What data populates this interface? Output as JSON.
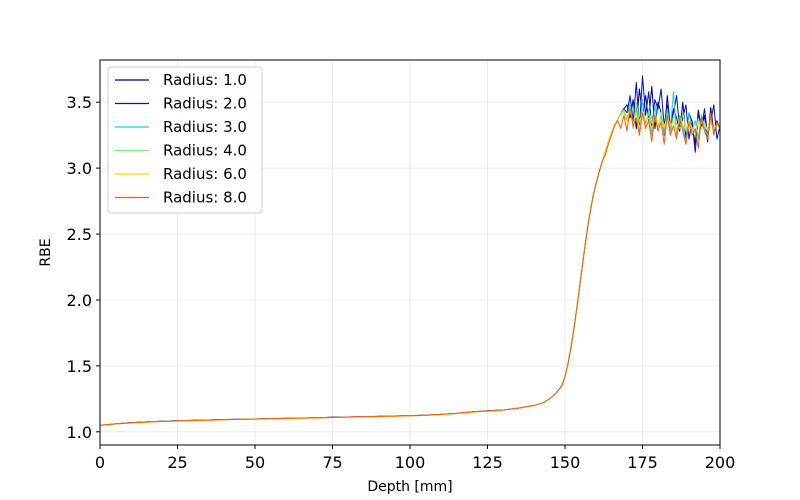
{
  "chart_data": {
    "type": "line",
    "xlabel": "Depth [mm]",
    "ylabel": "RBE",
    "xlim": [
      0,
      200
    ],
    "ylim": [
      0.9,
      3.82
    ],
    "xticks": [
      0,
      25,
      50,
      75,
      100,
      125,
      150,
      175,
      200
    ],
    "xtick_labels": [
      "0",
      "25",
      "50",
      "75",
      "100",
      "125",
      "150",
      "175",
      "200"
    ],
    "yticks": [
      1.0,
      1.5,
      2.0,
      2.5,
      3.0,
      3.5
    ],
    "ytick_labels": [
      "1.0",
      "1.5",
      "2.0",
      "2.5",
      "3.0",
      "3.5"
    ],
    "grid": true,
    "legend_position": "top-left",
    "x": [
      0,
      5,
      10,
      15,
      20,
      25,
      30,
      35,
      40,
      45,
      50,
      55,
      60,
      65,
      70,
      75,
      80,
      85,
      90,
      95,
      100,
      105,
      110,
      115,
      120,
      125,
      130,
      135,
      140,
      143,
      145,
      147,
      149,
      150,
      151,
      152,
      153,
      154,
      155,
      156,
      157,
      158,
      159,
      160,
      161,
      162,
      163,
      164,
      165,
      166,
      167,
      168,
      169,
      170,
      171,
      172,
      173,
      174,
      175,
      176,
      177,
      178,
      179,
      180,
      181,
      182,
      183,
      184,
      185,
      186,
      187,
      188,
      189,
      190,
      191,
      192,
      193,
      194,
      195,
      196,
      197,
      198,
      199,
      200
    ],
    "series": [
      {
        "name": "Radius: 1.0",
        "color": "#00007f",
        "values": [
          1.05,
          1.06,
          1.07,
          1.075,
          1.08,
          1.085,
          1.087,
          1.09,
          1.093,
          1.095,
          1.097,
          1.1,
          1.102,
          1.105,
          1.107,
          1.11,
          1.112,
          1.115,
          1.117,
          1.12,
          1.123,
          1.127,
          1.132,
          1.14,
          1.15,
          1.16,
          1.165,
          1.18,
          1.2,
          1.22,
          1.25,
          1.29,
          1.35,
          1.42,
          1.52,
          1.65,
          1.8,
          1.97,
          2.15,
          2.33,
          2.5,
          2.65,
          2.78,
          2.88,
          2.97,
          3.05,
          3.13,
          3.2,
          3.27,
          3.32,
          3.37,
          3.41,
          3.45,
          3.48,
          3.38,
          3.52,
          3.3,
          3.6,
          3.4,
          3.55,
          3.35,
          3.62,
          3.3,
          3.5,
          3.42,
          3.25,
          3.55,
          3.3,
          3.45,
          3.38,
          3.28,
          3.5,
          3.22,
          3.42,
          3.35,
          3.18,
          3.44,
          3.3,
          3.4,
          3.2,
          3.46,
          3.28,
          3.36,
          3.3
        ]
      },
      {
        "name": "Radius: 2.0",
        "color": "#0010c8",
        "values": [
          1.05,
          1.06,
          1.068,
          1.075,
          1.08,
          1.084,
          1.087,
          1.09,
          1.092,
          1.095,
          1.097,
          1.1,
          1.102,
          1.104,
          1.107,
          1.11,
          1.112,
          1.114,
          1.117,
          1.12,
          1.122,
          1.126,
          1.132,
          1.14,
          1.152,
          1.158,
          1.165,
          1.18,
          1.2,
          1.22,
          1.25,
          1.29,
          1.35,
          1.42,
          1.52,
          1.65,
          1.8,
          1.97,
          2.15,
          2.33,
          2.5,
          2.65,
          2.78,
          2.88,
          2.97,
          3.05,
          3.13,
          3.2,
          3.27,
          3.32,
          3.37,
          3.41,
          3.45,
          3.42,
          3.55,
          3.35,
          3.65,
          3.3,
          3.7,
          3.4,
          3.58,
          3.3,
          3.52,
          3.45,
          3.6,
          3.32,
          3.48,
          3.25,
          3.42,
          3.55,
          3.3,
          3.38,
          3.48,
          3.22,
          3.36,
          3.12,
          3.4,
          3.3,
          3.45,
          3.25,
          3.35,
          3.48,
          3.22,
          3.32
        ]
      },
      {
        "name": "Radius: 3.0",
        "color": "#1cd0e0",
        "values": [
          1.05,
          1.058,
          1.068,
          1.074,
          1.079,
          1.083,
          1.086,
          1.089,
          1.092,
          1.094,
          1.097,
          1.099,
          1.101,
          1.104,
          1.106,
          1.109,
          1.111,
          1.114,
          1.116,
          1.119,
          1.122,
          1.126,
          1.131,
          1.139,
          1.15,
          1.157,
          1.165,
          1.18,
          1.2,
          1.22,
          1.25,
          1.29,
          1.35,
          1.42,
          1.52,
          1.65,
          1.8,
          1.97,
          2.15,
          2.33,
          2.5,
          2.65,
          2.78,
          2.88,
          2.97,
          3.05,
          3.13,
          3.2,
          3.27,
          3.32,
          3.37,
          3.41,
          3.44,
          3.36,
          3.5,
          3.3,
          3.46,
          3.28,
          3.52,
          3.34,
          3.42,
          3.25,
          3.48,
          3.3,
          3.4,
          3.26,
          3.45,
          3.3,
          3.58,
          3.25,
          3.4,
          3.32,
          3.2,
          3.42,
          3.28,
          3.36,
          3.22,
          3.4,
          3.3,
          3.25,
          3.38,
          3.28,
          3.34,
          3.3
        ]
      },
      {
        "name": "Radius: 4.0",
        "color": "#7df07d",
        "values": [
          1.05,
          1.059,
          1.067,
          1.074,
          1.079,
          1.083,
          1.086,
          1.089,
          1.091,
          1.094,
          1.096,
          1.099,
          1.101,
          1.103,
          1.106,
          1.108,
          1.111,
          1.113,
          1.116,
          1.119,
          1.121,
          1.125,
          1.131,
          1.139,
          1.149,
          1.157,
          1.165,
          1.18,
          1.2,
          1.22,
          1.25,
          1.29,
          1.35,
          1.42,
          1.52,
          1.65,
          1.8,
          1.97,
          2.15,
          2.33,
          2.5,
          2.65,
          2.78,
          2.88,
          2.97,
          3.05,
          3.13,
          3.2,
          3.27,
          3.32,
          3.37,
          3.41,
          3.44,
          3.38,
          3.46,
          3.32,
          3.5,
          3.35,
          3.42,
          3.3,
          3.45,
          3.34,
          3.4,
          3.28,
          3.42,
          3.32,
          3.38,
          3.26,
          3.4,
          3.34,
          3.3,
          3.42,
          3.28,
          3.36,
          3.3,
          3.24,
          3.38,
          3.3,
          3.35,
          3.28,
          3.36,
          3.3,
          3.33,
          3.3
        ]
      },
      {
        "name": "Radius: 6.0",
        "color": "#ffd400",
        "values": [
          1.05,
          1.059,
          1.067,
          1.073,
          1.078,
          1.082,
          1.085,
          1.088,
          1.091,
          1.093,
          1.096,
          1.098,
          1.1,
          1.103,
          1.105,
          1.108,
          1.11,
          1.113,
          1.115,
          1.118,
          1.121,
          1.125,
          1.13,
          1.138,
          1.148,
          1.156,
          1.165,
          1.18,
          1.2,
          1.22,
          1.25,
          1.29,
          1.35,
          1.42,
          1.52,
          1.65,
          1.8,
          1.97,
          2.15,
          2.33,
          2.5,
          2.65,
          2.78,
          2.88,
          2.97,
          3.05,
          3.13,
          3.2,
          3.27,
          3.32,
          3.37,
          3.4,
          3.42,
          3.35,
          3.45,
          3.33,
          3.42,
          3.3,
          3.44,
          3.36,
          3.38,
          3.3,
          3.41,
          3.33,
          3.37,
          3.3,
          3.4,
          3.32,
          3.36,
          3.28,
          3.38,
          3.32,
          3.3,
          3.36,
          3.3,
          3.27,
          3.35,
          3.3,
          3.33,
          3.28,
          3.34,
          3.3,
          3.32,
          3.3
        ]
      },
      {
        "name": "Radius: 8.0",
        "color": "#ff5a00",
        "values": [
          1.05,
          1.06,
          1.068,
          1.074,
          1.079,
          1.083,
          1.086,
          1.089,
          1.092,
          1.094,
          1.097,
          1.099,
          1.102,
          1.104,
          1.107,
          1.109,
          1.112,
          1.114,
          1.117,
          1.12,
          1.122,
          1.126,
          1.132,
          1.14,
          1.151,
          1.158,
          1.165,
          1.18,
          1.2,
          1.22,
          1.25,
          1.29,
          1.35,
          1.42,
          1.52,
          1.65,
          1.8,
          1.97,
          2.15,
          2.33,
          2.5,
          2.65,
          2.78,
          2.88,
          2.97,
          3.05,
          3.1,
          3.18,
          3.25,
          3.32,
          3.36,
          3.3,
          3.4,
          3.28,
          3.45,
          3.32,
          3.38,
          3.25,
          3.42,
          3.3,
          3.36,
          3.2,
          3.4,
          3.28,
          3.35,
          3.18,
          3.4,
          3.25,
          3.32,
          3.22,
          3.38,
          3.28,
          3.18,
          3.35,
          3.25,
          3.3,
          3.15,
          3.38,
          3.28,
          3.22,
          3.42,
          3.25,
          3.35,
          3.3
        ]
      }
    ]
  }
}
